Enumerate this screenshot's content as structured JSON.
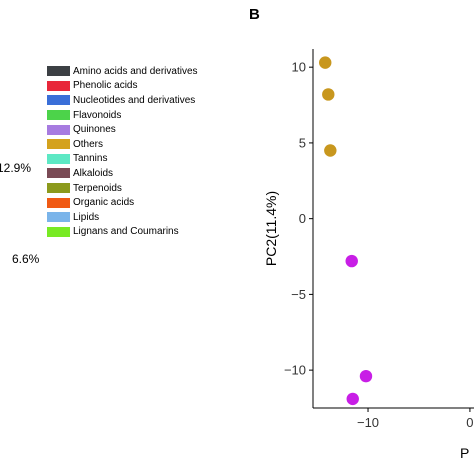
{
  "left_panel": {
    "percent_labels": [
      "12.9%",
      "6.6%"
    ]
  },
  "legend": {
    "items": [
      {
        "label": "Amino acids and derivatives",
        "color": "#3c4044"
      },
      {
        "label": "Phenolic acids",
        "color": "#e8273a"
      },
      {
        "label": "Nucleotides and derivatives",
        "color": "#3a6fd8"
      },
      {
        "label": "Flavonoids",
        "color": "#4cd34a"
      },
      {
        "label": "Quinones",
        "color": "#a77be0"
      },
      {
        "label": "Others",
        "color": "#d4a21d"
      },
      {
        "label": "Tannins",
        "color": "#5de8c4"
      },
      {
        "label": "Alkaloids",
        "color": "#7a4a55"
      },
      {
        "label": "Terpenoids",
        "color": "#8c9a1c"
      },
      {
        "label": "Organic acids",
        "color": "#f05a14"
      },
      {
        "label": "Lipids",
        "color": "#7ab4ea"
      },
      {
        "label": "Lignans and Coumarins",
        "color": "#78ea24"
      }
    ]
  },
  "panel_label": "B",
  "chart_data": {
    "type": "scatter",
    "ylabel": "PC2(11.4%)",
    "xlabel": "P",
    "xlim": [
      -15.4,
      0.4
    ],
    "ylim": [
      -12.5,
      11.2
    ],
    "x_ticks": [
      -10,
      0
    ],
    "x_tick_labels": [
      "−10",
      "0"
    ],
    "y_ticks": [
      10,
      5,
      0,
      -5,
      -10
    ],
    "y_tick_labels": [
      "10",
      "5",
      "0",
      "−5",
      "−10"
    ],
    "series": [
      {
        "color": "#c8971e",
        "points": [
          {
            "x": -14.2,
            "y": 10.3
          },
          {
            "x": -13.9,
            "y": 8.2
          },
          {
            "x": -13.7,
            "y": 4.5
          }
        ]
      },
      {
        "color": "#c81ee6",
        "points": [
          {
            "x": -11.6,
            "y": -2.8
          },
          {
            "x": -10.2,
            "y": -10.4
          },
          {
            "x": -11.5,
            "y": -11.9
          }
        ]
      }
    ]
  }
}
